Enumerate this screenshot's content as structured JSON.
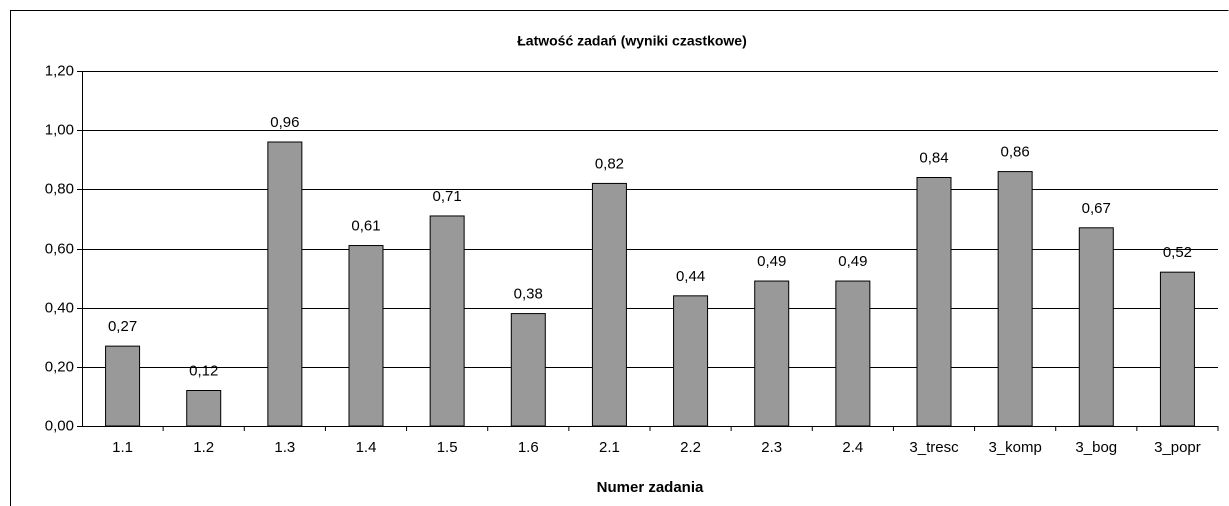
{
  "chart_data": {
    "type": "bar",
    "title": "Łatwość zadań (wyniki czastkowe)",
    "x_label": "Numer zadania",
    "categories": [
      "1.1",
      "1.2",
      "1.3",
      "1.4",
      "1.5",
      "1.6",
      "2.1",
      "2.2",
      "2.3",
      "2.4",
      "3_tresc",
      "3_komp",
      "3_bog",
      "3_popr"
    ],
    "values": [
      0.27,
      0.12,
      0.96,
      0.61,
      0.71,
      0.38,
      0.82,
      0.44,
      0.49,
      0.49,
      0.84,
      0.86,
      0.67,
      0.52
    ],
    "value_labels": [
      "0,27",
      "0,12",
      "0,96",
      "0,61",
      "0,71",
      "0,38",
      "0,82",
      "0,44",
      "0,49",
      "0,49",
      "0,84",
      "0,86",
      "0,67",
      "0,52"
    ],
    "color": "#999999",
    "ylim": [
      0,
      1.2
    ],
    "yticks": [
      {
        "value": 0,
        "label": "0,00"
      },
      {
        "value": 0.2,
        "label": "0,20"
      },
      {
        "value": 0.4,
        "label": "0,40"
      },
      {
        "value": 0.6,
        "label": "0,60"
      },
      {
        "value": 0.8,
        "label": "0,80"
      },
      {
        "value": 1.0,
        "label": "1,00"
      },
      {
        "value": 1.2,
        "label": "1,20"
      }
    ],
    "grid": true
  }
}
